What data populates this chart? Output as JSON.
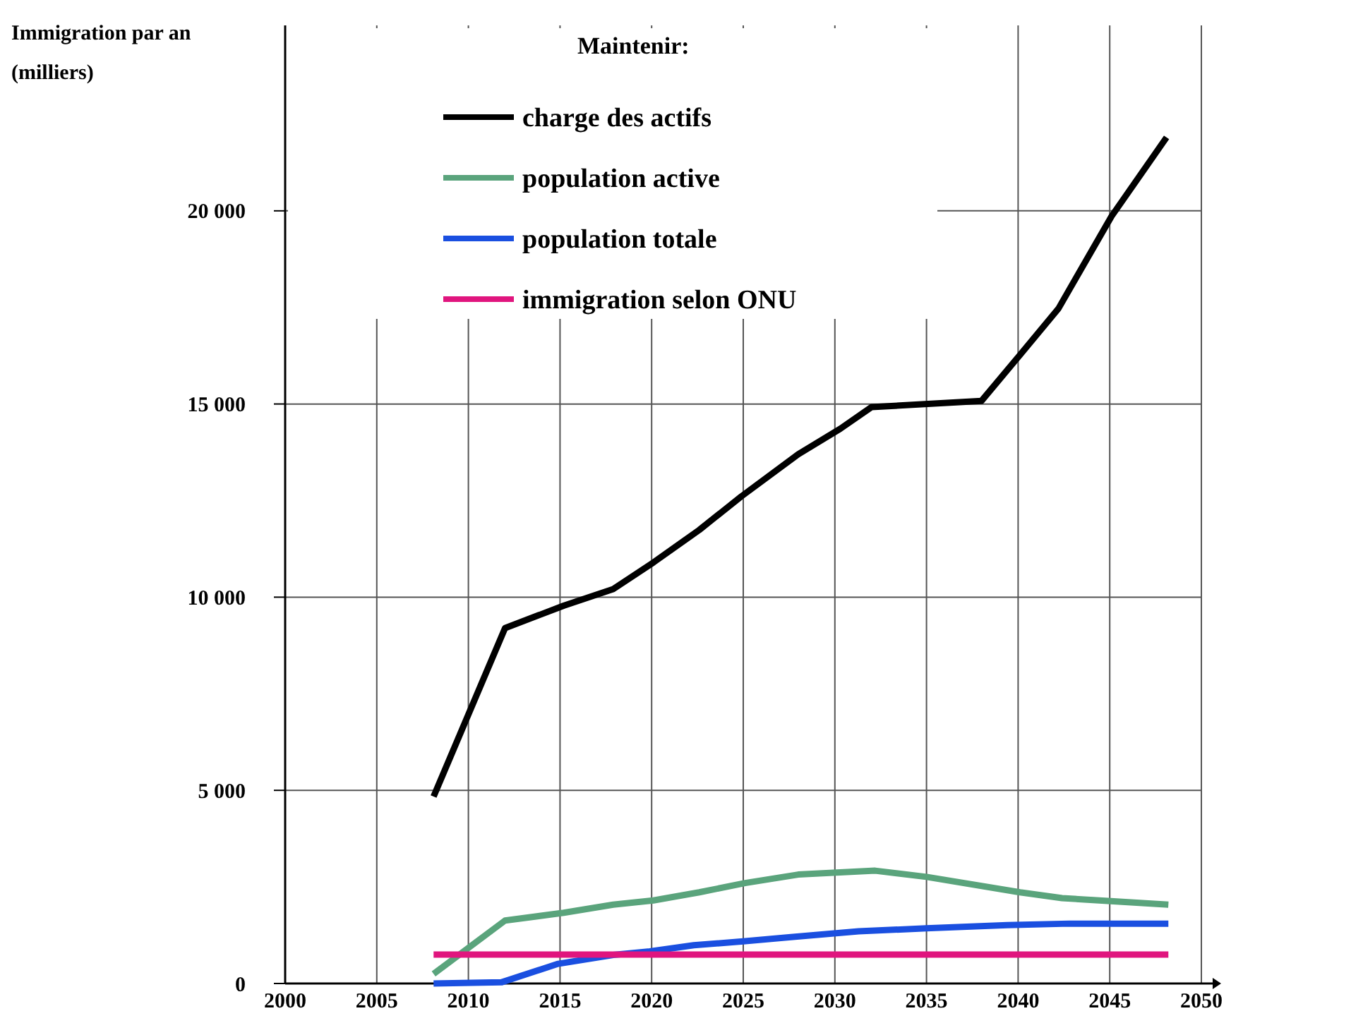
{
  "chart_data": {
    "type": "line",
    "ylabel": "Immigration par an\n(milliers)",
    "legend_title": "Maintenir:",
    "legend": "top left",
    "grid": true,
    "line_style": "solid",
    "marker": "none",
    "xlim": [
      2000,
      2050
    ],
    "xticks": [
      2000,
      2005,
      2010,
      2015,
      2020,
      2025,
      2030,
      2035,
      2040,
      2045,
      2050
    ],
    "ylim": [
      0,
      24800
    ],
    "yticks": [
      0,
      {
        "value": 5000,
        "label": "5 000"
      },
      {
        "value": 10000,
        "label": "10 000"
      },
      {
        "value": 15000,
        "label": "15 000"
      },
      {
        "value": 20000,
        "label": "20 000"
      }
    ],
    "series": [
      {
        "name": "charge des actifs",
        "color": "#000000",
        "x": [
          2008.1,
          2012,
          2015.2,
          2017.9,
          2020.1,
          2022.6,
          2024.9,
          2028,
          2030.3,
          2032,
          2038,
          2040.1,
          2042.2,
          2045.1,
          2048.1
        ],
        "values": [
          4840,
          9200,
          9780,
          10210,
          10900,
          11740,
          12610,
          13700,
          14360,
          14920,
          15080,
          16270,
          17470,
          19860,
          21900
        ]
      },
      {
        "name": "population active",
        "color": "#5aa47c",
        "x": [
          2008.1,
          2012,
          2015.2,
          2017.9,
          2020.1,
          2022.6,
          2025.1,
          2028,
          2032.2,
          2035,
          2040.1,
          2042.4,
          2048.2
        ],
        "values": [
          250,
          1630,
          1830,
          2040,
          2150,
          2360,
          2600,
          2820,
          2920,
          2760,
          2360,
          2210,
          2040
        ]
      },
      {
        "name": "population totale",
        "color": "#1a4fe0",
        "x": [
          2008.1,
          2011.8,
          2014.9,
          2017.9,
          2019.9,
          2022.3,
          2025,
          2027.6,
          2031.3,
          2035,
          2039.4,
          2042.8,
          2048.2
        ],
        "values": [
          0,
          30,
          510,
          740,
          830,
          990,
          1090,
          1200,
          1350,
          1430,
          1510,
          1550,
          1550
        ]
      },
      {
        "name": "immigration selon ONU",
        "color": "#e0157e",
        "x": [
          2008.1,
          2048.2
        ],
        "values": [
          750,
          750
        ]
      }
    ]
  }
}
